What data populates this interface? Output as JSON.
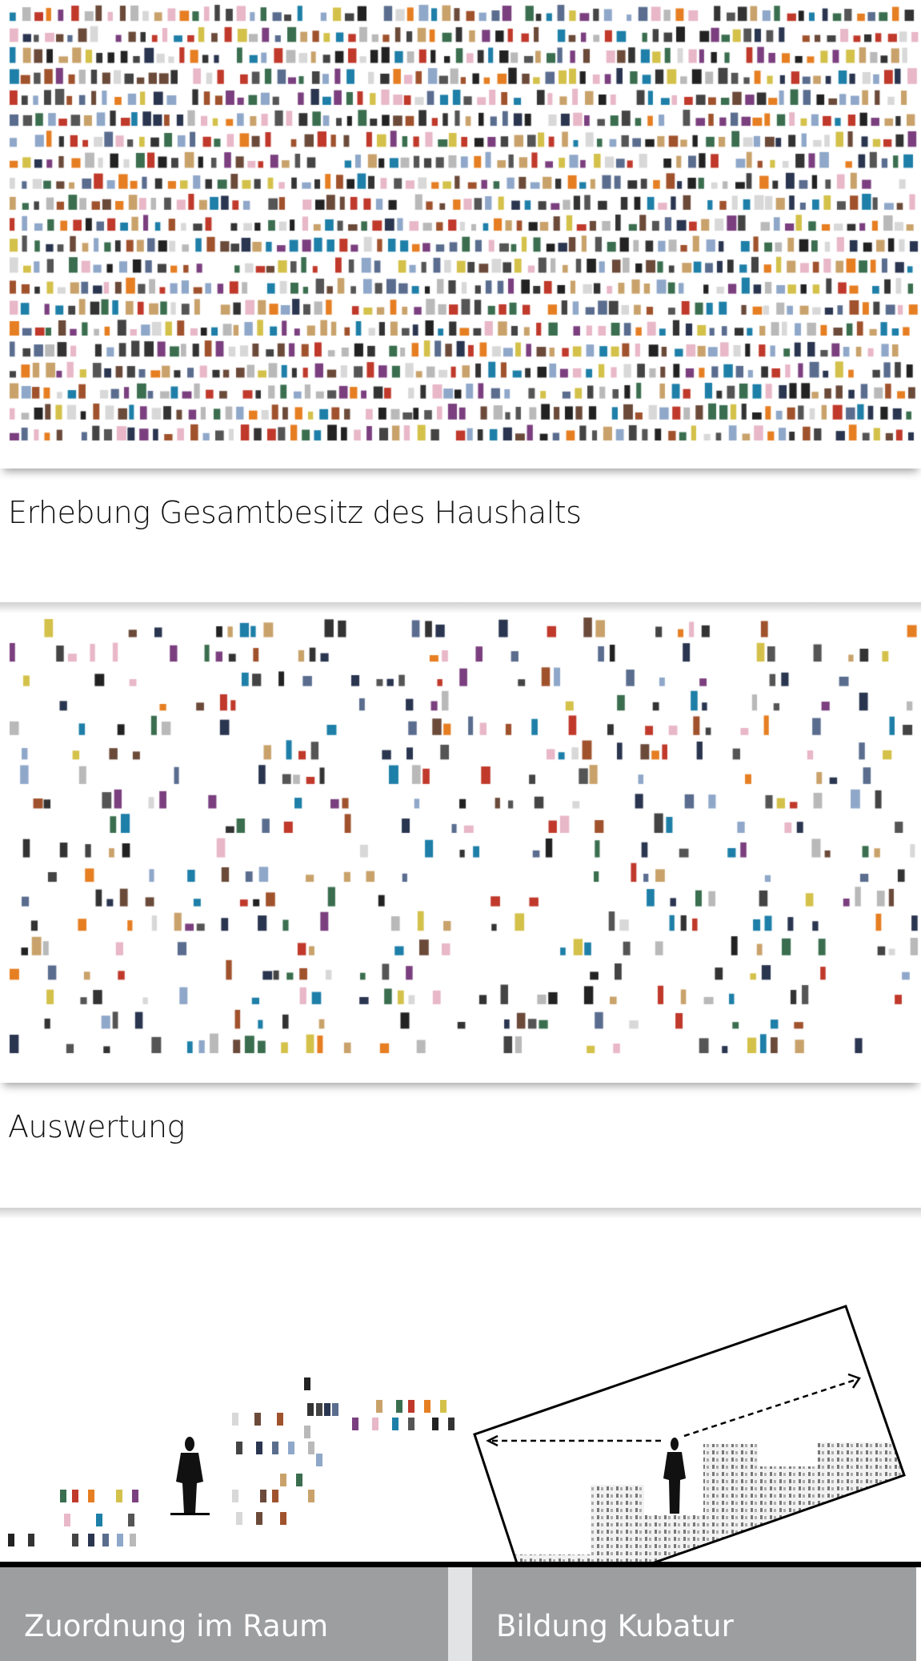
{
  "sections": {
    "survey": {
      "caption": "Erhebung Gesamtbesitz des Haushalts"
    },
    "evaluation": {
      "caption": "Auswertung"
    }
  },
  "footer": {
    "left_label": "Zuordnung im Raum",
    "right_label": "Bildung Kubatur"
  },
  "colors": {
    "footer_bar": "#9d9ea0",
    "footer_gap": "#e2e3e5",
    "ground": "#000000"
  }
}
